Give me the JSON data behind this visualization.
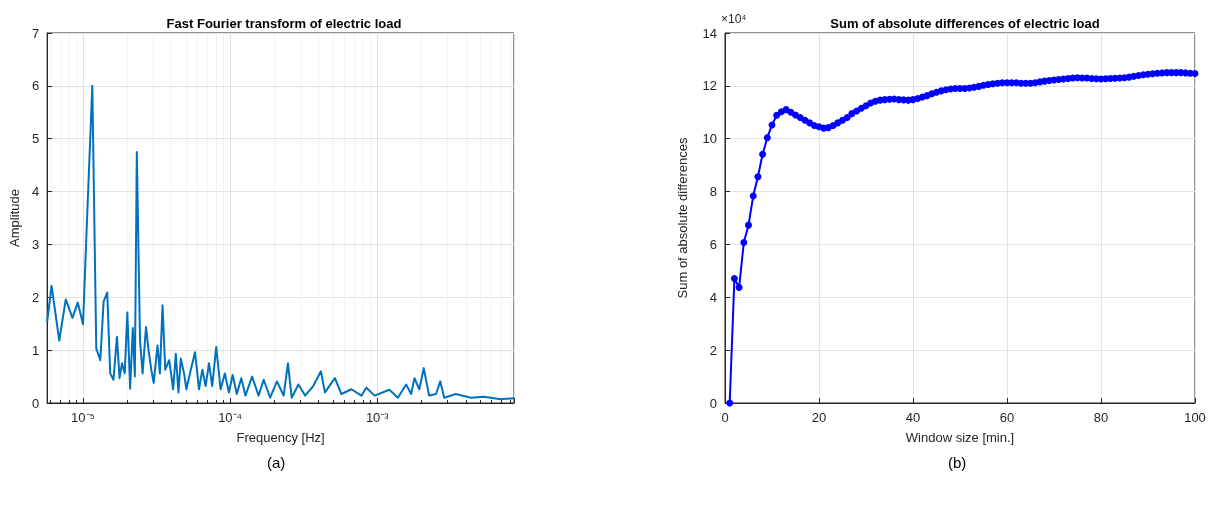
{
  "chart_data": [
    {
      "type": "line",
      "title": "Fast Fourier transform of electric load",
      "xlabel": "Frequency [Hz]",
      "ylabel": "Amplitude",
      "log": "x",
      "grid": true,
      "marker": "none",
      "line_style": "solid",
      "xlim": [
        5.7e-06,
        0.0085
      ],
      "xticks": [
        {
          "value": 1e-05,
          "label": "10⁻⁵"
        },
        {
          "value": 0.0001,
          "label": "10⁻⁴"
        },
        {
          "value": 0.001,
          "label": "10⁻³"
        }
      ],
      "ylim": [
        0,
        7
      ],
      "yticks": [
        0,
        1,
        2,
        3,
        4,
        5,
        6,
        7
      ],
      "annotations": [
        "(a)"
      ],
      "series": [
        {
          "color": "#0072bd",
          "x": [
            5.71e-06,
            6.11e-06,
            6.89e-06,
            7.63e-06,
            8.47e-06,
            9.2e-06,
            1e-05,
            1.053e-05,
            1.156e-05,
            1.23e-05,
            1.31e-05,
            1.38e-05,
            1.46e-05,
            1.53e-05,
            1.61e-05,
            1.7e-05,
            1.77e-05,
            1.84e-05,
            1.92e-05,
            2e-05,
            2.09e-05,
            2.18e-05,
            2.25e-05,
            2.32e-05,
            2.44e-05,
            2.54e-05,
            2.68e-05,
            2.79e-05,
            2.91e-05,
            3.02e-05,
            3.21e-05,
            3.33e-05,
            3.47e-05,
            3.62e-05,
            3.85e-05,
            4.1e-05,
            4.27e-05,
            4.45e-05,
            4.62e-05,
            4.86e-05,
            5.04e-05,
            5.4e-05,
            5.77e-05,
            6.14e-05,
            6.47e-05,
            6.81e-05,
            7.18e-05,
            7.55e-05,
            8.04e-05,
            8.61e-05,
            9.2e-05,
            9.8e-05,
            0.000104,
            0.000111,
            0.000119,
            0.000127,
            0.000141,
            0.000156,
            0.000169,
            0.000187,
            0.000208,
            0.000231,
            0.000247,
            0.000262,
            0.000291,
            0.000323,
            0.000367,
            0.000414,
            0.000441,
            0.000515,
            0.000571,
            0.000667,
            0.00078,
            0.000843,
            0.00096,
            0.00121,
            0.00138,
            0.00157,
            0.0017,
            0.00179,
            0.00193,
            0.00207,
            0.00225,
            0.00251,
            0.00268,
            0.00285,
            0.00342,
            0.00432,
            0.00531,
            0.00689,
            0.00847
          ],
          "values": [
            1.55,
            2.22,
            1.18,
            1.96,
            1.61,
            1.9,
            1.49,
            3.14,
            6.0,
            1.03,
            0.81,
            1.92,
            2.09,
            0.56,
            0.44,
            1.25,
            0.47,
            0.75,
            0.56,
            1.71,
            0.27,
            1.42,
            0.5,
            4.75,
            1.18,
            0.56,
            1.44,
            0.99,
            0.63,
            0.38,
            1.09,
            0.56,
            1.85,
            0.63,
            0.81,
            0.26,
            0.93,
            0.2,
            0.84,
            0.56,
            0.26,
            0.63,
            0.96,
            0.26,
            0.63,
            0.32,
            0.75,
            0.32,
            1.06,
            0.26,
            0.56,
            0.2,
            0.53,
            0.17,
            0.47,
            0.14,
            0.5,
            0.14,
            0.44,
            0.1,
            0.41,
            0.14,
            0.75,
            0.1,
            0.35,
            0.14,
            0.32,
            0.6,
            0.2,
            0.47,
            0.17,
            0.26,
            0.14,
            0.29,
            0.14,
            0.25,
            0.1,
            0.35,
            0.17,
            0.47,
            0.26,
            0.66,
            0.14,
            0.17,
            0.41,
            0.1,
            0.17,
            0.1,
            0.12,
            0.07,
            0.09
          ]
        }
      ]
    },
    {
      "type": "line",
      "title": "Sum of absolute differences of electric load",
      "xlabel": "Window size [min.]",
      "ylabel": "Sum of absolute differences",
      "grid": true,
      "marker": "circle",
      "line_style": "solid",
      "xlim": [
        0,
        100
      ],
      "xticks": [
        0,
        20,
        40,
        60,
        80,
        100
      ],
      "ylim": [
        0,
        14
      ],
      "yticks": [
        0,
        2,
        4,
        6,
        8,
        10,
        12,
        14
      ],
      "annotations": [
        "×10⁴",
        "(b)"
      ],
      "series": [
        {
          "color": "#0000ff",
          "x": [
            1,
            2,
            3,
            4,
            5,
            6,
            7,
            8,
            9,
            10,
            11,
            12,
            13,
            14,
            15,
            16,
            17,
            18,
            19,
            20,
            21,
            22,
            23,
            24,
            25,
            26,
            27,
            28,
            29,
            30,
            31,
            32,
            33,
            34,
            35,
            36,
            37,
            38,
            39,
            40,
            41,
            42,
            43,
            44,
            45,
            46,
            47,
            48,
            49,
            50,
            51,
            52,
            53,
            54,
            55,
            56,
            57,
            58,
            59,
            60,
            61,
            62,
            63,
            64,
            65,
            66,
            67,
            68,
            69,
            70,
            71,
            72,
            73,
            74,
            75,
            76,
            77,
            78,
            79,
            80,
            81,
            82,
            83,
            84,
            85,
            86,
            87,
            88,
            89,
            90,
            91,
            92,
            93,
            94,
            95,
            96,
            97,
            98,
            99,
            100
          ],
          "values": [
            0,
            4.71,
            4.37,
            6.07,
            6.73,
            7.83,
            8.56,
            9.41,
            10.04,
            10.52,
            10.89,
            11.02,
            11.1,
            11.0,
            10.9,
            10.8,
            10.7,
            10.6,
            10.5,
            10.45,
            10.4,
            10.42,
            10.5,
            10.6,
            10.7,
            10.8,
            10.95,
            11.05,
            11.15,
            11.25,
            11.35,
            11.42,
            11.46,
            11.48,
            11.49,
            11.5,
            11.48,
            11.47,
            11.46,
            11.48,
            11.52,
            11.58,
            11.63,
            11.7,
            11.76,
            11.81,
            11.85,
            11.88,
            11.9,
            11.9,
            11.9,
            11.92,
            11.95,
            11.98,
            12.02,
            12.05,
            12.08,
            12.1,
            12.12,
            12.12,
            12.12,
            12.12,
            12.1,
            12.1,
            12.1,
            12.12,
            12.15,
            12.18,
            12.2,
            12.22,
            12.24,
            12.26,
            12.28,
            12.3,
            12.31,
            12.3,
            12.3,
            12.28,
            12.27,
            12.26,
            12.27,
            12.28,
            12.29,
            12.3,
            12.31,
            12.33,
            12.36,
            12.39,
            12.42,
            12.44,
            12.46,
            12.48,
            12.49,
            12.5,
            12.5,
            12.5,
            12.5,
            12.49,
            12.48,
            12.47
          ]
        }
      ]
    }
  ]
}
